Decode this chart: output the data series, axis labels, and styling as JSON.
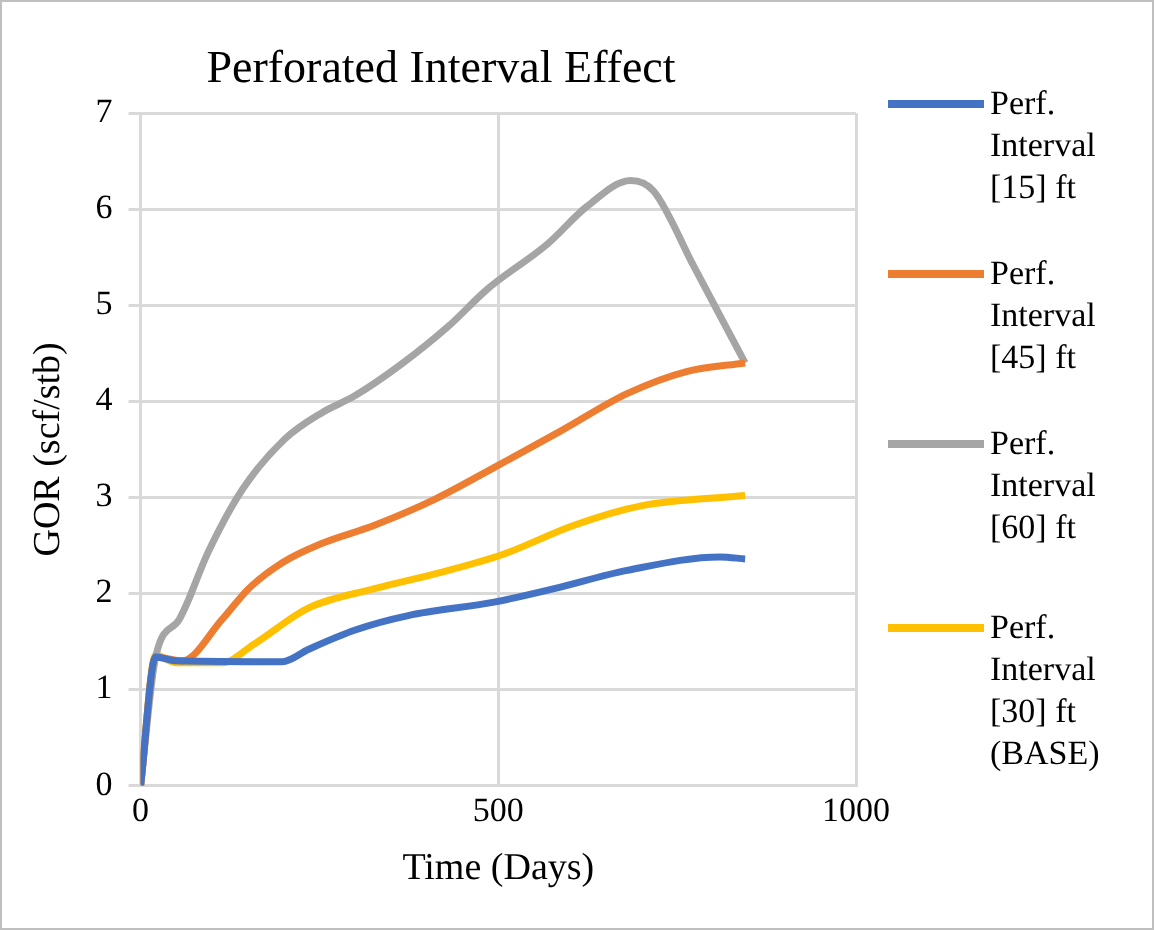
{
  "chart_data": {
    "type": "line",
    "title": "Perforated Interval Effect",
    "xlabel": "Time (Days)",
    "ylabel": "GOR (scf/stb)",
    "xlim": [
      0,
      1000
    ],
    "xticks": [
      0,
      500,
      1000
    ],
    "ylim": [
      0,
      7
    ],
    "yticks": [
      0,
      1,
      2,
      3,
      4,
      5,
      6,
      7
    ],
    "grid": true,
    "legend": "right",
    "marker": "none",
    "line_style": "solid",
    "series": [
      {
        "name": "Perf. Interval [15] ft",
        "color": "#4472c4",
        "x": [
          0,
          21,
          49,
          198,
          235,
          300,
          374,
          494,
          578,
          680,
          810,
          845
        ],
        "values": [
          0,
          1.34,
          1.3,
          1.29,
          1.42,
          1.62,
          1.77,
          1.91,
          2.05,
          2.24,
          2.38,
          2.36
        ]
      },
      {
        "name": "Perf. Interval [45] ft",
        "color": "#ed7d31",
        "x": [
          0,
          21,
          58,
          114,
          151,
          198,
          253,
          327,
          411,
          494,
          587,
          680,
          763,
          845
        ],
        "values": [
          0,
          1.34,
          1.3,
          1.73,
          2.05,
          2.32,
          2.52,
          2.71,
          2.98,
          3.31,
          3.69,
          4.08,
          4.31,
          4.4
        ]
      },
      {
        "name": "Perf. Interval [60] ft",
        "color": "#a5a5a5",
        "x": [
          0,
          21,
          54,
          95,
          142,
          202,
          253,
          300,
          365,
          430,
          485,
          569,
          624,
          685,
          717,
          773,
          845
        ],
        "values": [
          0,
          1.34,
          1.73,
          2.44,
          3.08,
          3.61,
          3.88,
          4.06,
          4.39,
          4.78,
          5.17,
          5.64,
          6.03,
          6.3,
          6.19,
          5.41,
          4.4
        ]
      },
      {
        "name": "Perf. Interval [30] ft (BASE)",
        "color": "#ffc000",
        "x": [
          0,
          21,
          49,
          114,
          160,
          235,
          327,
          420,
          504,
          606,
          698,
          845
        ],
        "values": [
          0,
          1.36,
          1.28,
          1.28,
          1.48,
          1.85,
          2.05,
          2.22,
          2.4,
          2.71,
          2.91,
          3.02
        ]
      }
    ]
  }
}
